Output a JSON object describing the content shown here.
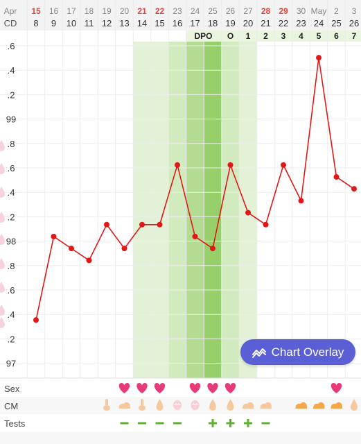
{
  "header": {
    "row_label_date": "Apr",
    "row_label_cd": "CD",
    "dates": [
      "15",
      "16",
      "17",
      "18",
      "19",
      "20",
      "21",
      "22",
      "23",
      "24",
      "25",
      "26",
      "27",
      "28",
      "29",
      "30",
      "May",
      "2",
      "3"
    ],
    "date_highlight": [
      true,
      false,
      false,
      false,
      false,
      false,
      true,
      true,
      false,
      false,
      false,
      false,
      false,
      true,
      true,
      false,
      false,
      false,
      false
    ],
    "cd": [
      "8",
      "9",
      "10",
      "11",
      "12",
      "13",
      "14",
      "15",
      "16",
      "17",
      "18",
      "19",
      "20",
      "21",
      "22",
      "23",
      "24",
      "25",
      "26"
    ],
    "dpo": [
      "",
      "",
      "",
      "",
      "",
      "",
      "",
      "",
      "",
      "DPO",
      "",
      "O",
      "1",
      "2",
      "3",
      "4",
      "5",
      "6",
      "7"
    ]
  },
  "y_axis_labels": [
    ".6",
    ".4",
    ".2",
    "99",
    ".8",
    ".6",
    ".4",
    ".2",
    "98",
    ".8",
    ".6",
    ".4",
    ".2",
    "97"
  ],
  "chart_data": {
    "type": "line",
    "x": [
      "15",
      "16",
      "17",
      "18",
      "19",
      "20",
      "21",
      "22",
      "23",
      "24",
      "25",
      "26",
      "27",
      "28",
      "29",
      "30",
      "May",
      "2",
      "3"
    ],
    "values": [
      97.3,
      98.0,
      97.9,
      97.8,
      98.1,
      97.9,
      98.1,
      98.1,
      98.6,
      98.0,
      97.9,
      98.6,
      98.2,
      98.1,
      98.6,
      98.3,
      99.5,
      98.5,
      98.4
    ],
    "ylim": [
      96.9,
      99.6
    ],
    "line_color": "#e01818",
    "fertile_window_columns": [
      6,
      7,
      8,
      9,
      10,
      11,
      12
    ],
    "peak_columns": [
      9,
      10
    ],
    "ovulation_column": 10
  },
  "rows": {
    "sex_label": "Sex",
    "cm_label": "CM",
    "tests_label": "Tests",
    "sex": [
      false,
      false,
      false,
      false,
      false,
      true,
      true,
      true,
      false,
      true,
      true,
      true,
      false,
      false,
      false,
      false,
      false,
      true,
      false
    ],
    "cm": [
      "",
      "",
      "",
      "",
      "stick",
      "cream",
      "stick",
      "drop",
      "egg",
      "egg",
      "drop",
      "drop",
      "cream",
      "cream",
      "",
      "cream",
      "cream",
      "cream",
      "drop"
    ],
    "tests": [
      "",
      "",
      "",
      "",
      "",
      "-",
      "-",
      "-",
      "-",
      "",
      "+",
      "+",
      "+",
      "-",
      "",
      "",
      "",
      "",
      ""
    ]
  },
  "colors": {
    "accent": "#5b5fd6",
    "heart": "#e63a7a",
    "red_text": "#e0473e",
    "test_green": "#5ab52a",
    "cm_tan": "#f5c9a0",
    "cm_orange": "#f4a64a"
  },
  "overlay_button": {
    "label": "Chart Overlay",
    "icon": "chart-overlay-icon"
  }
}
